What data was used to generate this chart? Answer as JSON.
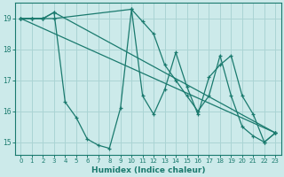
{
  "xlabel": "Humidex (Indice chaleur)",
  "bg_color": "#cceaea",
  "line_color": "#1a7a6e",
  "grid_color": "#aad4d4",
  "xlim": [
    -0.5,
    23.5
  ],
  "ylim": [
    14.6,
    19.5
  ],
  "yticks": [
    15,
    16,
    17,
    18,
    19
  ],
  "xticks": [
    0,
    1,
    2,
    3,
    4,
    5,
    6,
    7,
    8,
    9,
    10,
    11,
    12,
    13,
    14,
    15,
    16,
    17,
    18,
    19,
    20,
    21,
    22,
    23
  ],
  "lines": [
    {
      "x": [
        0,
        23
      ],
      "y": [
        19.0,
        15.3
      ]
    },
    {
      "x": [
        0,
        1,
        2,
        3,
        23
      ],
      "y": [
        19.0,
        19.0,
        19.0,
        19.2,
        15.3
      ]
    },
    {
      "x": [
        0,
        1,
        2,
        3,
        4,
        5,
        6,
        7,
        8,
        9,
        10,
        11,
        12,
        13,
        14,
        15,
        16,
        17,
        18,
        19,
        20,
        21,
        22,
        23
      ],
      "y": [
        19.0,
        19.0,
        19.0,
        19.2,
        16.3,
        15.8,
        15.1,
        14.9,
        14.8,
        16.1,
        19.3,
        16.5,
        15.9,
        16.7,
        17.9,
        16.8,
        15.9,
        17.1,
        17.5,
        17.8,
        16.5,
        15.9,
        15.0,
        15.3
      ]
    },
    {
      "x": [
        0,
        1,
        2,
        3,
        10,
        11,
        12,
        13,
        14,
        15,
        16,
        17,
        18,
        19,
        20,
        21,
        22,
        23
      ],
      "y": [
        19.0,
        19.0,
        19.0,
        19.0,
        19.3,
        18.9,
        18.5,
        17.5,
        17.0,
        16.5,
        16.0,
        16.5,
        17.8,
        16.5,
        15.5,
        15.2,
        15.0,
        15.3
      ]
    }
  ]
}
